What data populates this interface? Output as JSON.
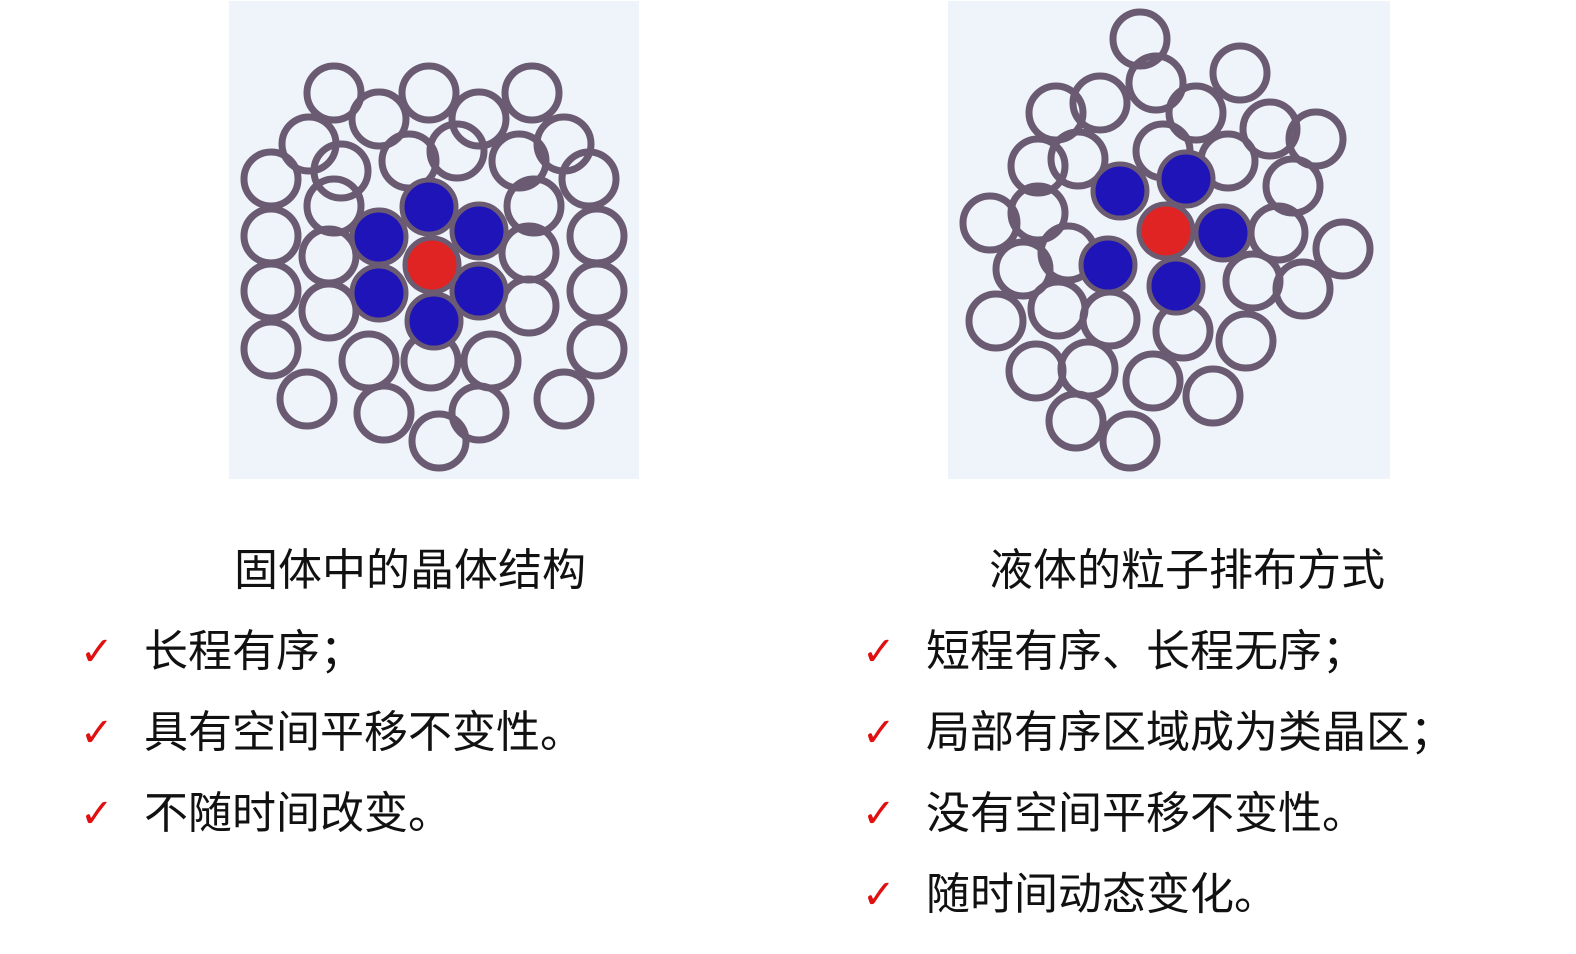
{
  "solid": {
    "heading": "固体中的晶体结构",
    "items": [
      "长程有序；",
      "具有空间平移不变性。",
      "不随时间改变。"
    ]
  },
  "liquid": {
    "heading": "液体的粒子排布方式",
    "items": [
      "短程有序、长程无序；",
      "局部有序区域成为类晶区；",
      "没有空间平移不变性。",
      "随时间动态变化。"
    ]
  },
  "colors": {
    "ring": "#6a5a72",
    "neighbor": "#1f14b8",
    "center": "#e02424",
    "check": "#e01010",
    "panel_bg": "#eef4f9"
  },
  "icons": {
    "bullet": "check-icon"
  }
}
